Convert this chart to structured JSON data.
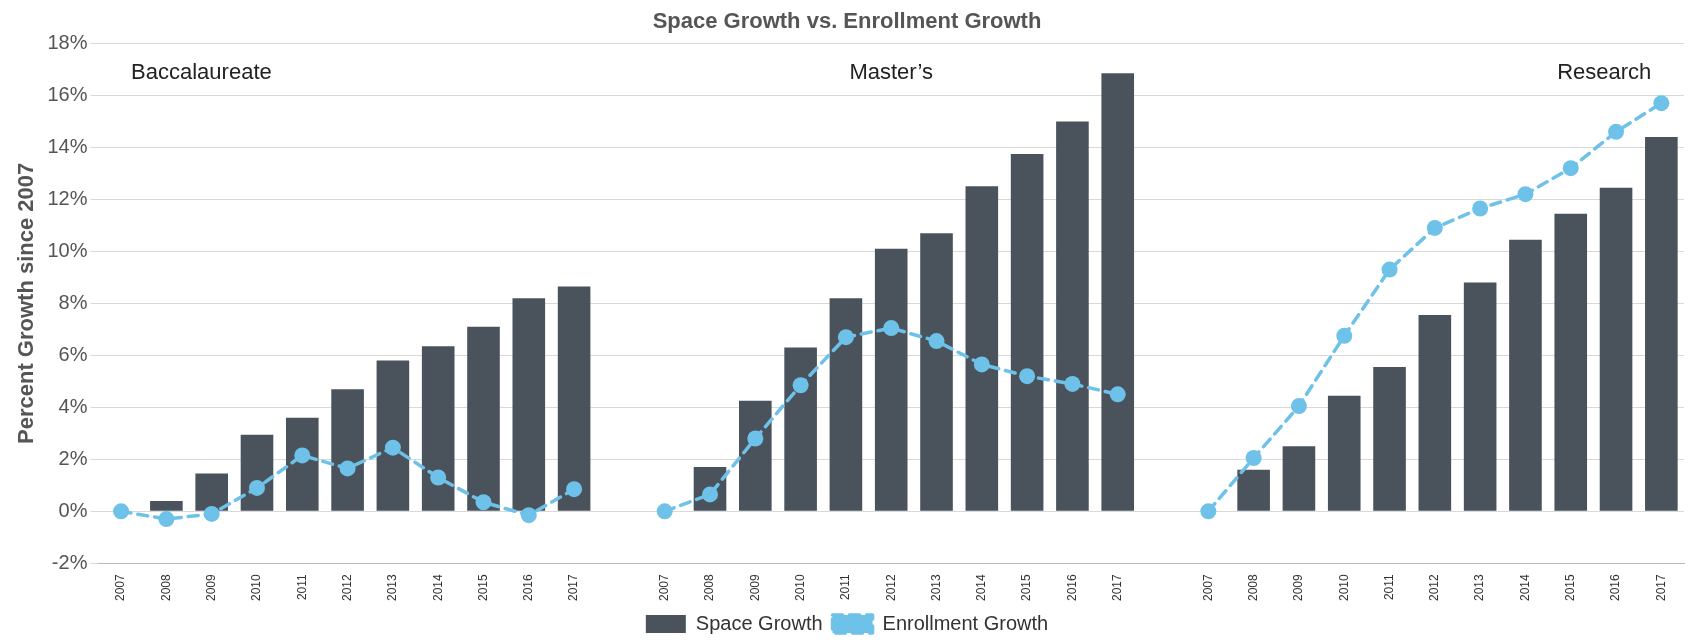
{
  "chart_data": {
    "type": "bar",
    "title": "Space Growth vs. Enrollment Growth",
    "ylabel": "Percent Growth since 2007",
    "categories": [
      "2007",
      "2008",
      "2009",
      "2010",
      "2011",
      "2012",
      "2013",
      "2014",
      "2015",
      "2016",
      "2017",
      null,
      "2007",
      "2008",
      "2009",
      "2010",
      "2011",
      "2012",
      "2013",
      "2014",
      "2015",
      "2016",
      "2017",
      null,
      "2007",
      "2008",
      "2009",
      "2010",
      "2011",
      "2012",
      "2013",
      "2014",
      "2015",
      "2016",
      "2017"
    ],
    "series": [
      {
        "name": "Space Growth",
        "color": "#4a535c",
        "values": [
          0,
          0.4,
          1.45,
          2.95,
          3.6,
          4.7,
          5.8,
          6.35,
          7.1,
          8.2,
          8.65,
          null,
          0,
          1.7,
          4.25,
          6.3,
          8.2,
          10.1,
          10.7,
          12.5,
          13.75,
          15.0,
          16.85,
          null,
          0,
          1.6,
          2.5,
          4.45,
          5.55,
          7.55,
          8.8,
          10.45,
          11.45,
          12.45,
          14.4
        ]
      },
      {
        "name": "Enrollment Growth",
        "type": "line",
        "color": "#6ec1e8",
        "marker": "circle",
        "line_style": "dashed",
        "values": [
          0,
          -0.3,
          -0.1,
          0.9,
          2.15,
          1.65,
          2.45,
          1.3,
          0.35,
          -0.15,
          0.85,
          null,
          0,
          0.65,
          2.8,
          4.85,
          6.7,
          7.05,
          6.55,
          5.65,
          5.2,
          4.9,
          4.5,
          null,
          0,
          2.05,
          4.05,
          6.75,
          9.3,
          10.9,
          11.65,
          12.2,
          13.2,
          14.6,
          15.7
        ]
      }
    ],
    "ylim": [
      -2,
      18
    ],
    "yticks": [
      {
        "value": -2,
        "label": "-2%"
      },
      {
        "value": 0,
        "label": "0%"
      },
      {
        "value": 2,
        "label": "2%"
      },
      {
        "value": 4,
        "label": "4%"
      },
      {
        "value": 6,
        "label": "6%"
      },
      {
        "value": 8,
        "label": "8%"
      },
      {
        "value": 10,
        "label": "10%"
      },
      {
        "value": 12,
        "label": "12%"
      },
      {
        "value": 14,
        "label": "14%"
      },
      {
        "value": 16,
        "label": "16%"
      },
      {
        "value": 18,
        "label": "18%"
      }
    ],
    "grid": "y",
    "legend": "bottom",
    "annotations": [
      "Baccalaureate",
      "Master’s",
      "Research"
    ]
  }
}
